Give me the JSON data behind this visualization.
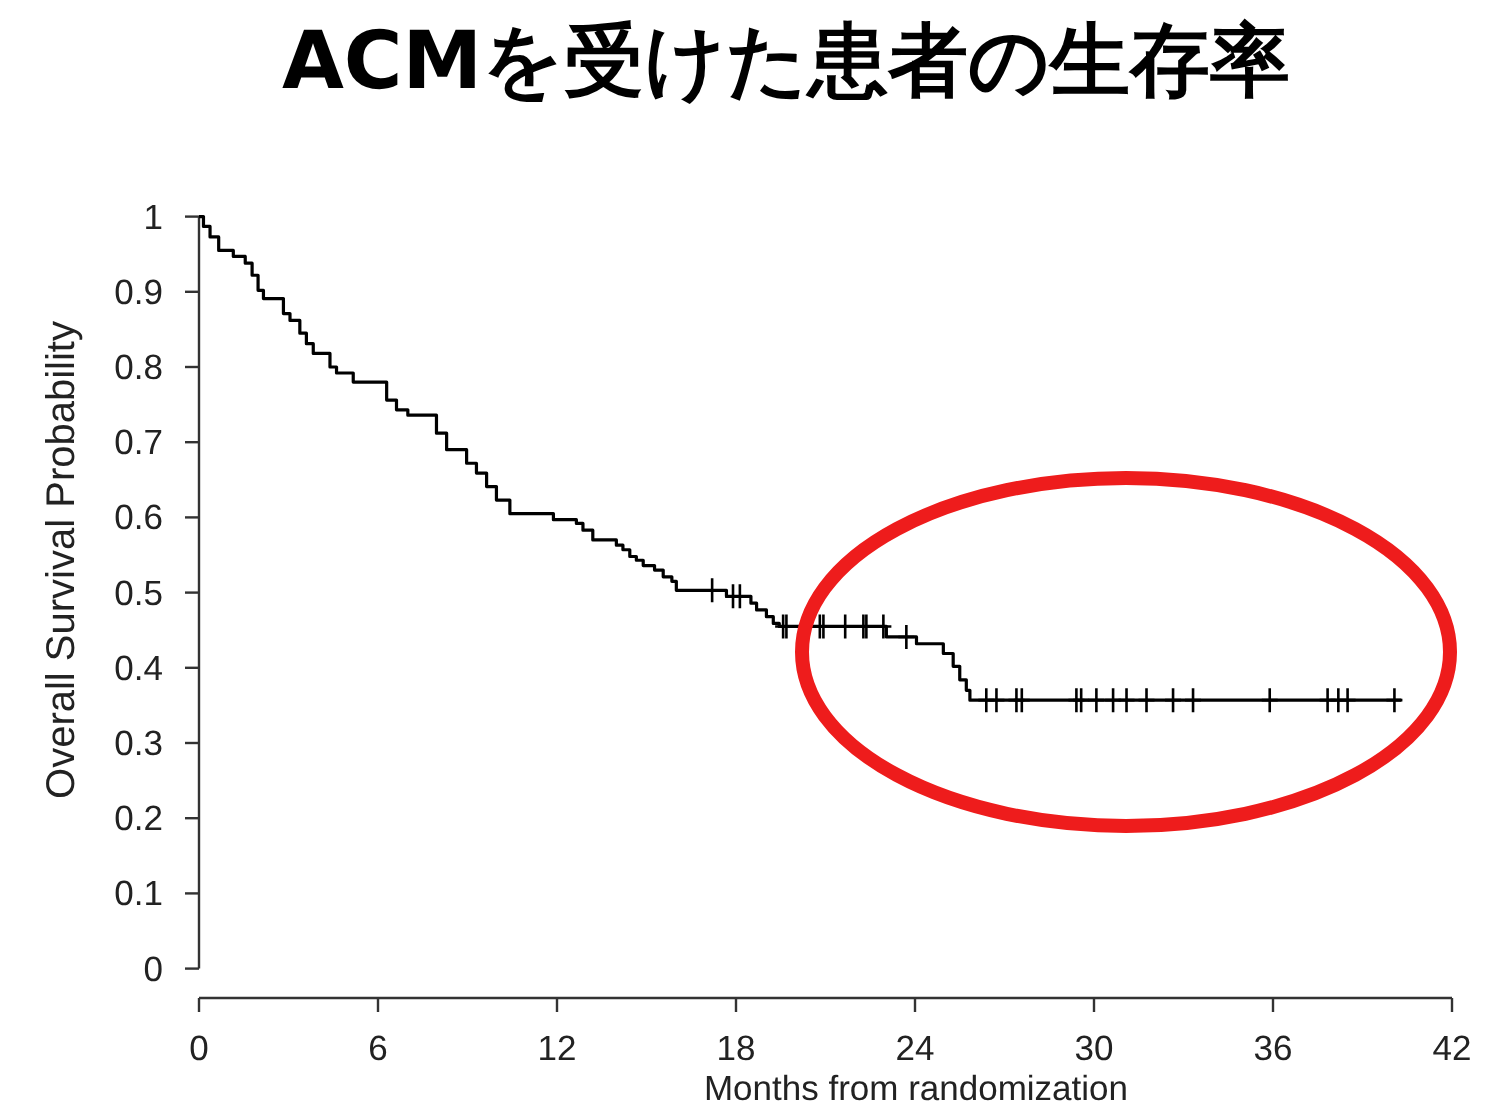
{
  "chart_data": {
    "type": "step",
    "title": "ACMを受けた患者の生存率",
    "xlabel": "Months from randomization",
    "ylabel": "Overall Survival Probability",
    "xlim": [
      0,
      42
    ],
    "ylim": [
      0,
      1
    ],
    "xticks": [
      0,
      6,
      12,
      18,
      24,
      30,
      36,
      42
    ],
    "yticks": [
      0,
      0.1,
      0.2,
      0.3,
      0.4,
      0.5,
      0.6,
      0.7,
      0.8,
      0.9,
      1
    ],
    "series": [
      {
        "color": "#000000",
        "x": [
          0,
          0.15,
          0.37,
          0.66,
          1.15,
          1.55,
          1.78,
          1.98,
          2.16,
          2.83,
          3.05,
          3.38,
          3.6,
          3.83,
          4.39,
          4.61,
          5.17,
          6.29,
          6.62,
          7.0,
          7.96,
          8.3,
          8.97,
          9.3,
          9.64,
          9.97,
          10.42,
          11.88,
          12.65,
          12.87,
          13.2,
          13.99,
          14.21,
          14.44,
          14.66,
          14.89,
          15.27,
          15.56,
          15.85,
          16.0,
          17.68,
          18.5,
          18.69,
          19.02,
          19.25,
          19.45,
          23.04,
          24.05,
          24.95,
          25.28,
          25.5,
          25.72,
          25.84,
          40.3
        ],
        "values": [
          1.0,
          0.987,
          0.973,
          0.955,
          0.947,
          0.938,
          0.922,
          0.902,
          0.891,
          0.871,
          0.862,
          0.845,
          0.831,
          0.818,
          0.8,
          0.792,
          0.78,
          0.756,
          0.743,
          0.736,
          0.712,
          0.69,
          0.672,
          0.659,
          0.641,
          0.623,
          0.605,
          0.597,
          0.592,
          0.583,
          0.57,
          0.563,
          0.557,
          0.548,
          0.543,
          0.536,
          0.53,
          0.521,
          0.515,
          0.503,
          0.495,
          0.486,
          0.477,
          0.468,
          0.459,
          0.455,
          0.441,
          0.432,
          0.419,
          0.402,
          0.384,
          0.37,
          0.357,
          0.357
        ]
      },
      {
        "type": "scatter",
        "color": "#000000",
        "marker": "cross",
        "x": [
          17.2,
          17.9,
          18.13,
          19.58,
          19.69,
          20.81,
          20.93,
          21.66,
          22.27,
          22.37,
          22.94,
          23.71,
          26.39,
          26.73,
          27.4,
          27.58,
          29.41,
          29.57,
          30.08,
          30.64,
          31.09,
          31.76,
          32.65,
          33.32,
          35.89,
          37.83,
          38.19,
          38.5,
          40.07
        ],
        "values": [
          0.503,
          0.495,
          0.495,
          0.455,
          0.455,
          0.455,
          0.455,
          0.455,
          0.455,
          0.455,
          0.455,
          0.441,
          0.357,
          0.357,
          0.357,
          0.357,
          0.357,
          0.357,
          0.357,
          0.357,
          0.357,
          0.357,
          0.357,
          0.357,
          0.357,
          0.357,
          0.357,
          0.357,
          0.357
        ]
      }
    ]
  }
}
